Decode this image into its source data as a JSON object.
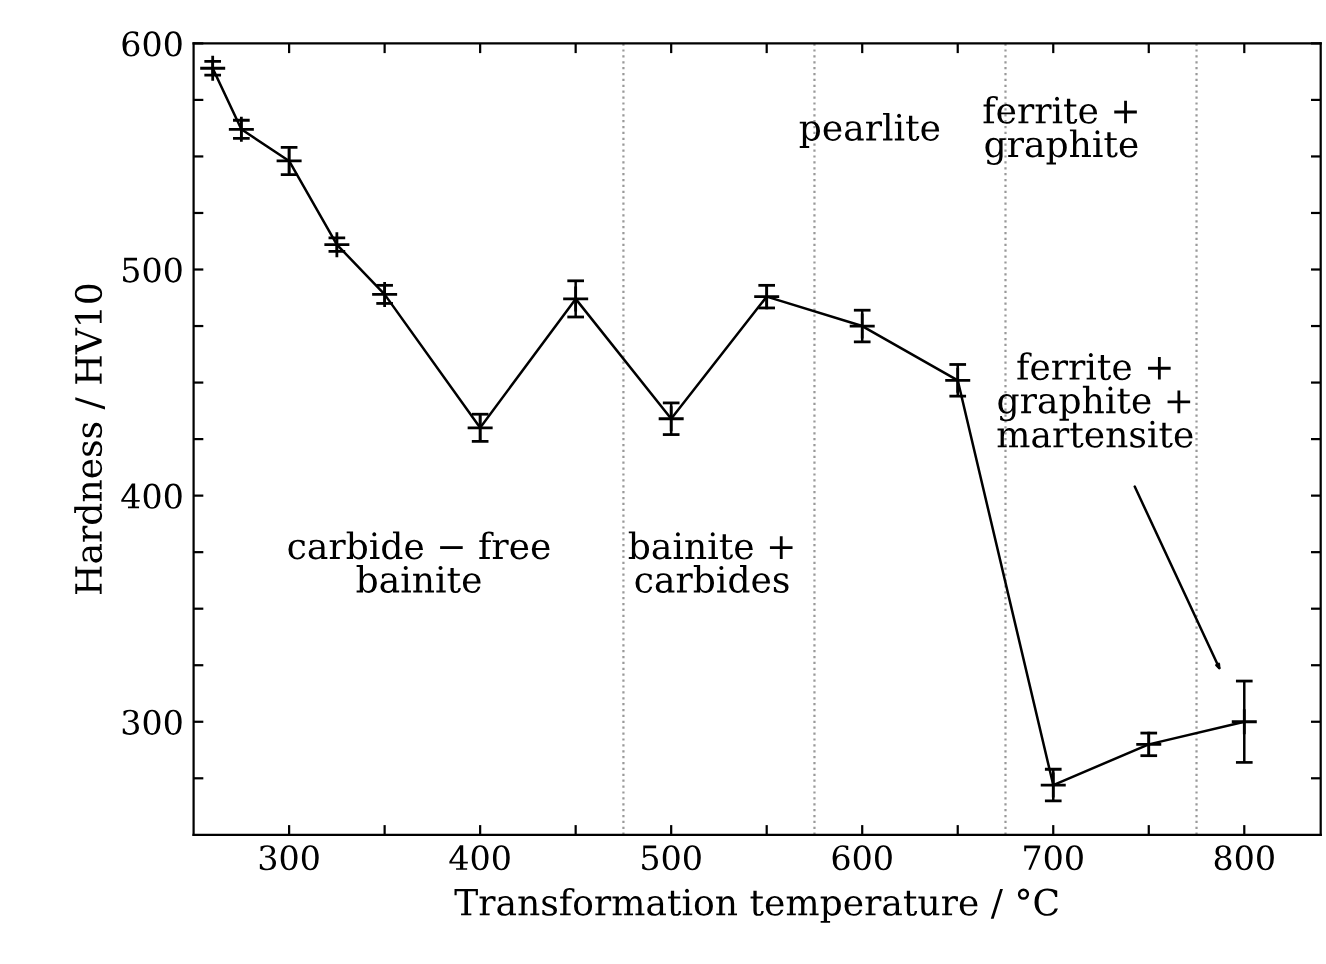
{
  "chart_data": {
    "type": "line",
    "xlabel": "Transformation temperature / °C",
    "ylabel": "Hardness / HV10",
    "x": [
      260,
      275,
      300,
      325,
      350,
      400,
      450,
      500,
      550,
      600,
      650,
      700,
      750,
      800
    ],
    "series": [
      {
        "color": "#000000",
        "values": [
          589,
          562,
          548,
          511,
          489,
          430,
          487,
          434,
          488,
          475,
          451,
          272,
          290,
          300
        ],
        "errors": [
          3,
          4,
          6,
          3,
          4,
          6,
          8,
          7,
          5,
          7,
          7,
          7,
          5,
          18
        ]
      }
    ],
    "marker": "cross",
    "line_style": "solid",
    "xlim": [
      250,
      840
    ],
    "ylim": [
      250,
      600
    ],
    "xticks": [
      300,
      {
        "value": 350,
        "label": null
      },
      400,
      {
        "value": 450,
        "label": null
      },
      500,
      {
        "value": 550,
        "label": null
      },
      600,
      {
        "value": 650,
        "label": null
      },
      700,
      {
        "value": 750,
        "label": null
      },
      800
    ],
    "yticks": [
      {
        "value": 275,
        "label": null
      },
      300,
      {
        "value": 325,
        "label": null
      },
      {
        "value": 350,
        "label": null
      },
      {
        "value": 375,
        "label": null
      },
      400,
      {
        "value": 425,
        "label": null
      },
      {
        "value": 450,
        "label": null
      },
      {
        "value": 475,
        "label": null
      },
      500,
      {
        "value": 525,
        "label": null
      },
      {
        "value": 550,
        "label": null
      },
      {
        "value": 575,
        "label": null
      },
      600
    ],
    "ref_lines": [
      {
        "axis": "x",
        "value": 475,
        "color": "#999999",
        "line_style": "dotted"
      },
      {
        "axis": "x",
        "value": 575,
        "color": "#999999",
        "line_style": "dotted"
      },
      {
        "axis": "x",
        "value": 675,
        "color": "#999999",
        "line_style": "dotted"
      },
      {
        "axis": "x",
        "value": 775,
        "color": "#999999",
        "line_style": "dotted"
      }
    ],
    "annotations": [
      "carbide − free\nbainite",
      "bainite +\ncarbides",
      "pearlite",
      "ferrite +\ngraphite",
      "ferrite +\ngraphite +\nmartensite"
    ],
    "grid": false,
    "legend": false
  }
}
